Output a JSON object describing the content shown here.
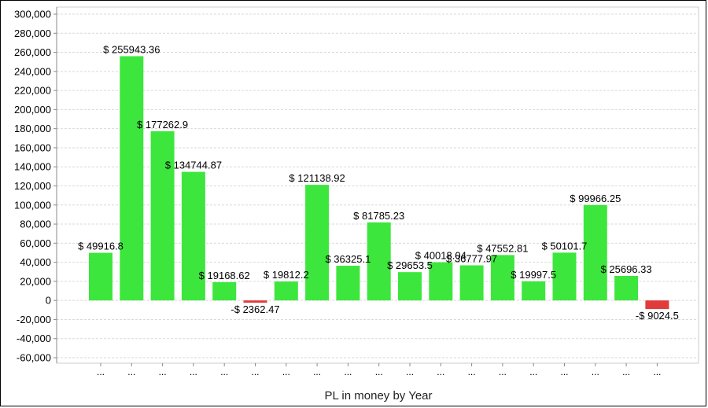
{
  "chart_data": {
    "type": "bar",
    "xlabel": "PL in money by Year",
    "ylabel": "",
    "ylim": [
      -60000,
      300000
    ],
    "ytick_step": 20000,
    "grid": true,
    "legend": "none",
    "category_labels": [
      "...",
      "...",
      "...",
      "...",
      "...",
      "...",
      "...",
      "...",
      "...",
      "...",
      "...",
      "...",
      "...",
      "...",
      "...",
      "...",
      "...",
      "...",
      "..."
    ],
    "values": [
      49916.8,
      255943.36,
      177262.9,
      134744.87,
      19168.62,
      -2362.47,
      19812.2,
      121138.92,
      36325.1,
      81785.23,
      29653.5,
      40018.04,
      36777.97,
      47552.81,
      19997.5,
      50101.7,
      99966.25,
      25696.33,
      -9024.5
    ],
    "data_labels": [
      "$ 49916.8",
      "$ 255943.36",
      "$ 177262.9",
      "$ 134744.87",
      "$ 19168.62",
      "-$ 2362.47",
      "$ 19812.2",
      "$ 121138.92",
      "$ 36325.1",
      "$ 81785.23",
      "$ 29653.5",
      "$ 40018.04",
      "$ 36777.97",
      "$ 47552.81",
      "$ 19997.5",
      "$ 50101.7",
      "$ 99966.25",
      "$ 25696.33",
      "-$ 9024.5"
    ],
    "colors": {
      "positive": "#3de63d",
      "negative": "#e23b3b",
      "grid": "#d9d9d9",
      "axis": "#888888",
      "text": "#000000"
    }
  }
}
